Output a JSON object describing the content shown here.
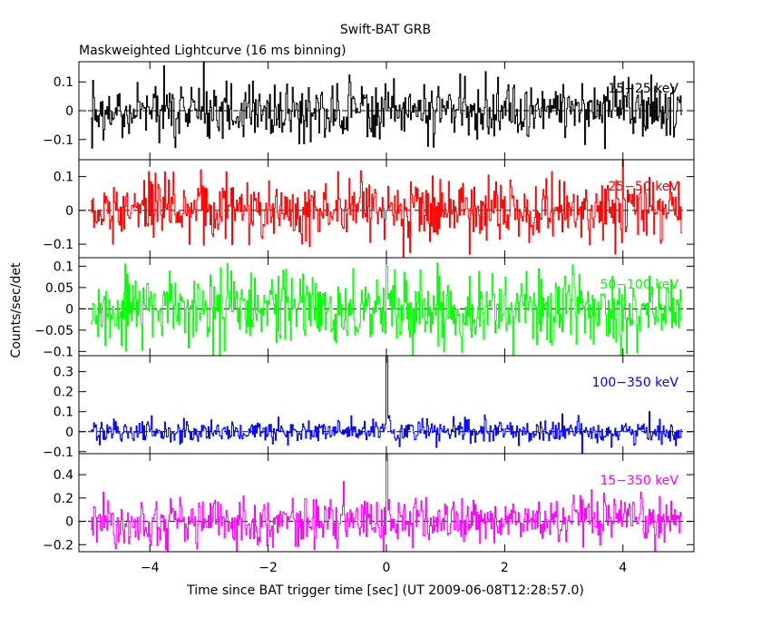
{
  "title": "Swift-BAT GRB",
  "subtitle": "Maskweighted Lightcurve (16 ms binning)",
  "xlabel": "Time since BAT trigger time [sec] (UT 2009-06-08T12:28:57.0)",
  "ylabel": "Counts/sec/det",
  "chart_data": {
    "type": "line",
    "title": "Swift-BAT GRB",
    "subtitle": "Maskweighted Lightcurve (16 ms binning)",
    "xlabel": "Time since BAT trigger time [sec] (UT 2009-06-08T12:28:57.0)",
    "ylabel": "Counts/sec/det",
    "xlim": [
      -5.2,
      5.2
    ],
    "x_ticks": [
      -4,
      -2,
      0,
      2,
      4
    ],
    "x_tick_labels": [
      "−4",
      "−2",
      "0",
      "2",
      "4"
    ],
    "x_range": [
      -5.0,
      5.0
    ],
    "bin_width_sec": 0.016,
    "zero_line": "dashed",
    "panels": [
      {
        "name": "15-25 keV",
        "label": "15−25 keV",
        "color": "#000000",
        "ylim": [
          -0.17,
          0.17
        ],
        "yticks": [
          -0.1,
          0,
          0.1
        ],
        "ytick_labels": [
          "−0.1",
          "0",
          "0.1"
        ],
        "noise_sigma": 0.05,
        "peak": {
          "x": 0.0,
          "y": 0.0
        }
      },
      {
        "name": "25-50 keV",
        "label": "25−50 keV",
        "color": "#ff0000",
        "ylim": [
          -0.14,
          0.15
        ],
        "yticks": [
          -0.1,
          0,
          0.1
        ],
        "ytick_labels": [
          "−0.1",
          "0",
          "0.1"
        ],
        "noise_sigma": 0.045,
        "peak": {
          "x": 0.0,
          "y": 0.0
        }
      },
      {
        "name": "50-100 keV",
        "label": "50−100 keV",
        "color": "#00ff00",
        "ylim": [
          -0.11,
          0.12
        ],
        "yticks": [
          -0.1,
          -0.05,
          0,
          0.05,
          0.1
        ],
        "ytick_labels": [
          "−0.1",
          "−0.05",
          "0",
          "0.05",
          "0.1"
        ],
        "noise_sigma": 0.042,
        "peak": {
          "x": 0.0,
          "y": 0.1
        }
      },
      {
        "name": "100-350 keV",
        "label": "100−350 keV",
        "color": "#0000ff",
        "ylim": [
          -0.11,
          0.38
        ],
        "yticks": [
          -0.1,
          0,
          0.1,
          0.2,
          0.3
        ],
        "ytick_labels": [
          "−0.1",
          "0",
          "0.1",
          "0.2",
          "0.3"
        ],
        "noise_sigma": 0.03,
        "peak": {
          "x": 0.0,
          "y": 0.38
        }
      },
      {
        "name": "15-350 keV",
        "label": "15−350 keV",
        "color": "#ff00ff",
        "ylim": [
          -0.26,
          0.58
        ],
        "yticks": [
          -0.2,
          0,
          0.2,
          0.4
        ],
        "ytick_labels": [
          "−0.2",
          "0",
          "0.2",
          "0.4"
        ],
        "noise_sigma": 0.1,
        "peak": {
          "x": 0.0,
          "y": 0.58
        }
      }
    ]
  }
}
